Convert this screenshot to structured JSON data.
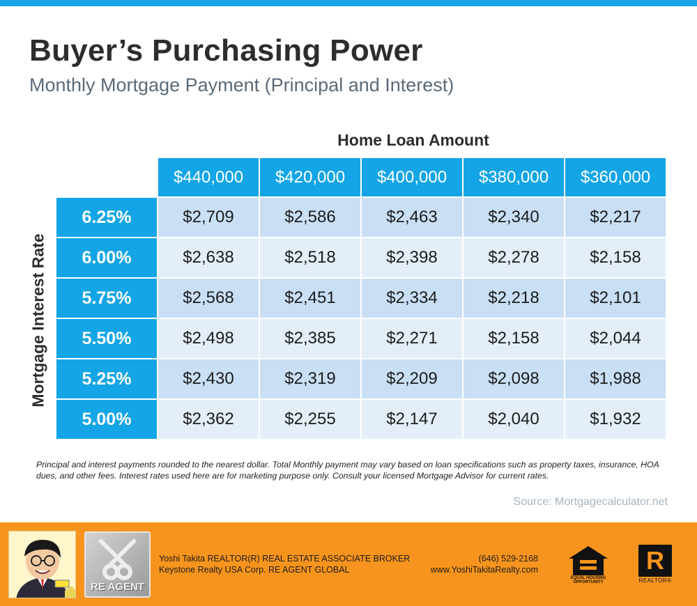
{
  "title": "Buyer’s Purchasing Power",
  "subtitle": "Monthly Mortgage Payment (Principal and Interest)",
  "table": {
    "column_group_label": "Home Loan Amount",
    "row_group_label": "Mortgage  Interest Rate",
    "columns": [
      "$440,000",
      "$420,000",
      "$400,000",
      "$380,000",
      "$360,000"
    ],
    "rows": [
      {
        "rate": "6.25%",
        "values": [
          "$2,709",
          "$2,586",
          "$2,463",
          "$2,340",
          "$2,217"
        ]
      },
      {
        "rate": "6.00%",
        "values": [
          "$2,638",
          "$2,518",
          "$2,398",
          "$2,278",
          "$2,158"
        ]
      },
      {
        "rate": "5.75%",
        "values": [
          "$2,568",
          "$2,451",
          "$2,334",
          "$2,218",
          "$2,101"
        ]
      },
      {
        "rate": "5.50%",
        "values": [
          "$2,498",
          "$2,385",
          "$2,271",
          "$2,158",
          "$2,044"
        ]
      },
      {
        "rate": "5.25%",
        "values": [
          "$2,430",
          "$2,319",
          "$2,209",
          "$2,098",
          "$1,988"
        ]
      },
      {
        "rate": "5.00%",
        "values": [
          "$2,362",
          "$2,255",
          "$2,147",
          "$2,040",
          "$1,932"
        ]
      }
    ]
  },
  "disclaimer": "Principal and interest payments rounded to the nearest dollar. Total Monthly payment may vary based on loan specifications such as property taxes, insurance, HOA dues, and other fees. Interest rates used here are for marketing purpose only. Consult your licensed Mortgage Advisor for current rates.",
  "source": "Source: Mortgagecalculator.net",
  "footer": {
    "agent_logo_text": "RE AGENT",
    "line1_left": "Yoshi Takita REALTOR(R) REAL ESTATE ASSOCIATE BROKER",
    "line2_left": "Keystone Realty USA Corp.  RE AGENT GLOBAL",
    "phone": "(646) 529-2168",
    "website": "www.YoshiTakitaRealty.com",
    "equal_housing_text": "EQUAL HOUSING OPPORTUNITY",
    "realtor_letter": "R",
    "realtor_text": "REALTOR®"
  },
  "colors": {
    "accent_blue": "#13a5e5",
    "row_light": "#e4eef9",
    "row_mid": "#c9dff5",
    "footer_orange": "#f7941d"
  }
}
